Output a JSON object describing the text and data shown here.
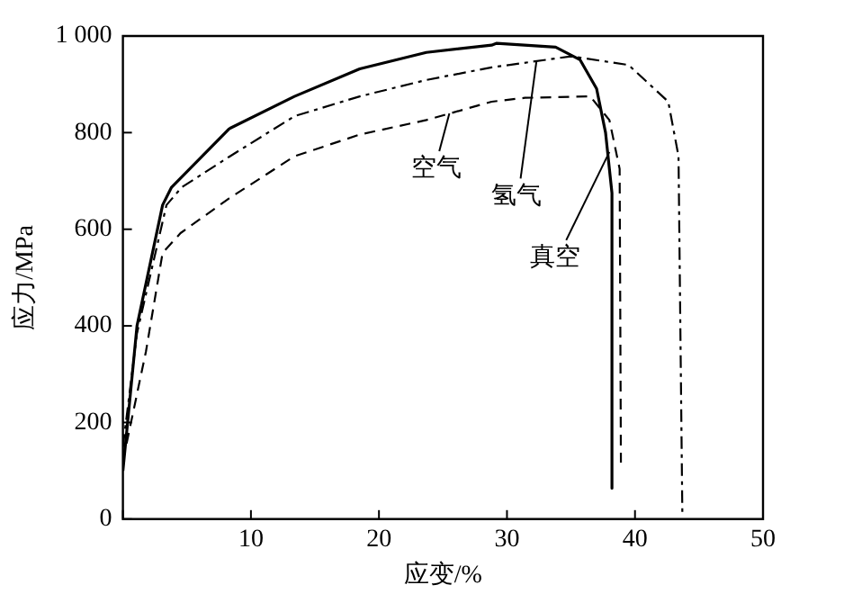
{
  "chart_data": {
    "type": "line",
    "xlabel": "应变/%",
    "ylabel": "应力/MPa",
    "xlim": [
      0,
      50
    ],
    "ylim": [
      0,
      1000
    ],
    "xticks": [
      {
        "value": 0,
        "label": null
      },
      10,
      20,
      30,
      40,
      50
    ],
    "yticks": [
      0,
      200,
      400,
      600,
      800,
      {
        "value": 1000,
        "label": "1 000"
      }
    ],
    "grid": false,
    "legend": false,
    "marker": "none",
    "series": [
      {
        "color": "#000000",
        "line_style": "solid",
        "x": [
          0,
          1.1,
          3.1,
          3.8,
          8.3,
          13.4,
          18.5,
          23.7,
          28.8,
          29.2,
          33.8,
          35.7,
          37,
          37.7,
          38.2,
          38.2
        ],
        "values": [
          100,
          400,
          650,
          687,
          808,
          875,
          932,
          966,
          981,
          985,
          977,
          951,
          891,
          800,
          675,
          64
        ]
      },
      {
        "color": "#000000",
        "line_style": "dashdot",
        "x": [
          0,
          1.1,
          3.4,
          4.6,
          8.3,
          13.4,
          18.5,
          23.7,
          28.8,
          35,
          39.5,
          42.6,
          43.4,
          43.7
        ],
        "values": [
          150,
          385,
          650,
          687,
          750,
          834,
          875,
          909,
          935,
          958,
          940,
          864,
          751,
          8
        ]
      },
      {
        "color": "#000000",
        "line_style": "dashed",
        "x": [
          0,
          0.6,
          1.8,
          3.1,
          4.5,
          8.3,
          13.4,
          18.5,
          23.7,
          28.8,
          31.4,
          36.5,
          38,
          38.8,
          38.9
        ],
        "values": [
          120,
          196,
          347,
          551,
          592,
          664,
          751,
          796,
          826,
          864,
          872,
          875,
          826,
          725,
          117
        ]
      }
    ],
    "annotations": [
      {
        "text": "空气",
        "x": 25.5,
        "y": 840
      },
      {
        "text": "氢气",
        "x": 32.3,
        "y": 947
      },
      {
        "text": "真空",
        "x": 38,
        "y": 760
      }
    ]
  }
}
